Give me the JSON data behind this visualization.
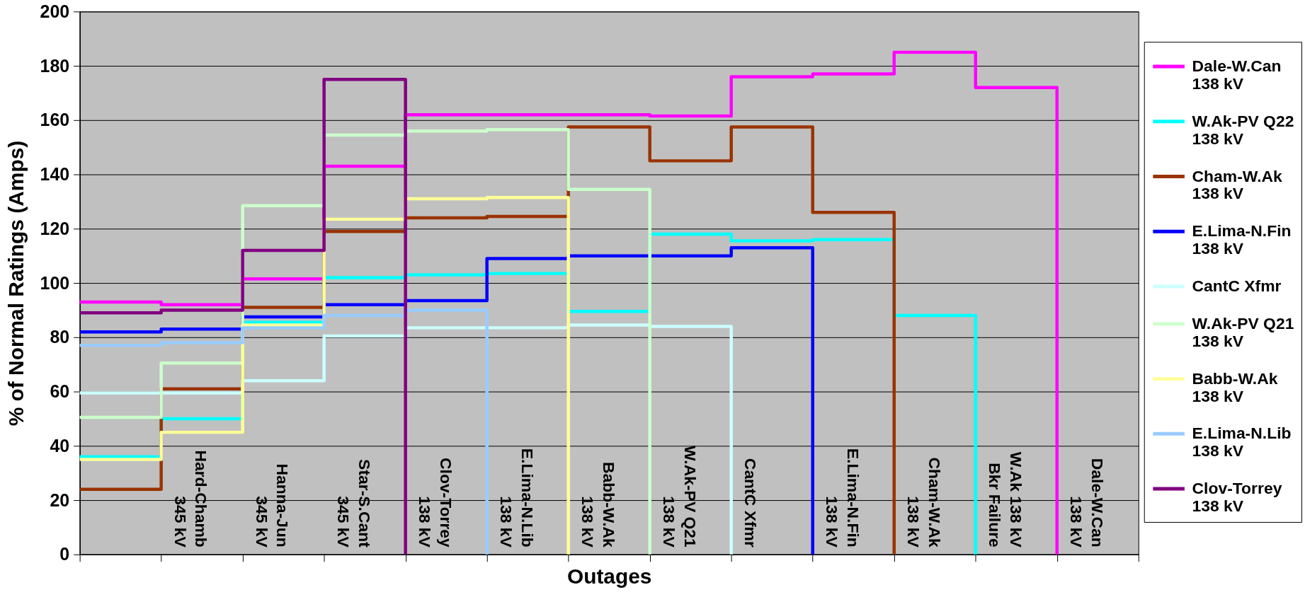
{
  "chart_data": {
    "type": "step",
    "xlabel": "Outages",
    "ylabel": "% of Normal Ratings (Amps)",
    "categories": [
      null,
      "Hard-Chamb 345 kV",
      "Hanna-Jun 345 kV",
      "Star-S.Cant 345 kV",
      "Clov-Torrey 138 kV",
      "E.Lima-N.Lib 138 kV",
      "Babb-W.Ak 138 kV",
      "W.Ak-PV Q21 138 kV",
      "CantC Xfmr",
      "E.Lima-N.Fin 138 kV",
      "Cham-W.Ak 138 kV",
      "W.Ak 138 kV Bkr Failure",
      "Dale-W.Can 138 kV"
    ],
    "series": [
      {
        "name": "Dale-W.Can 138 kV",
        "color": "#ff00ff",
        "values": [
          93,
          92,
          101.5,
          143,
          162,
          162,
          162,
          161.5,
          176,
          177,
          185,
          172,
          0
        ]
      },
      {
        "name": "W.Ak-PV Q22 138 kV",
        "color": "#00ffff",
        "values": [
          36,
          50,
          85.5,
          102,
          103,
          103.5,
          89.5,
          118,
          115.5,
          116,
          88,
          0,
          null
        ]
      },
      {
        "name": "Cham-W.Ak 138 kV",
        "color": "#993300",
        "values": [
          24,
          61,
          91,
          119,
          124,
          124.5,
          157.5,
          145,
          157.5,
          126,
          0,
          null,
          null
        ]
      },
      {
        "name": "E.Lima-N.Fin 138 kV",
        "color": "#0000ff",
        "values": [
          82,
          83,
          87.5,
          92,
          93.5,
          109,
          110,
          110,
          113,
          0,
          null,
          null,
          null
        ]
      },
      {
        "name": "CantC Xfmr",
        "color": "#ccffff",
        "values": [
          59.5,
          59.5,
          64,
          80.5,
          83.5,
          83.5,
          84.5,
          84,
          0,
          null,
          null,
          null,
          null
        ]
      },
      {
        "name": "W.Ak-PV Q21 138 kV",
        "color": "#ccffcc",
        "values": [
          50.5,
          70.5,
          128.5,
          154.5,
          156,
          156.5,
          134.5,
          0,
          null,
          null,
          null,
          null,
          null
        ]
      },
      {
        "name": "Babb-W.Ak 138 kV",
        "color": "#ffff99",
        "values": [
          35,
          45,
          84.5,
          123.5,
          131,
          131.5,
          0,
          null,
          null,
          null,
          null,
          null,
          null
        ]
      },
      {
        "name": "E.Lima-N.Lib 138 kV",
        "color": "#99ccff",
        "values": [
          77,
          78,
          83.5,
          88,
          90,
          0,
          null,
          null,
          null,
          null,
          null,
          null,
          null
        ]
      },
      {
        "name": "Clov-Torrey 138 kV",
        "color": "#800080",
        "values": [
          89,
          90,
          112,
          175,
          0,
          null,
          null,
          null,
          null,
          null,
          null,
          null,
          null
        ]
      }
    ],
    "ylim": [
      0,
      200
    ],
    "yticks": [
      0,
      20,
      40,
      60,
      80,
      100,
      120,
      140,
      160,
      180,
      200
    ],
    "grid": "y",
    "legend": "right",
    "line_style": "solid"
  }
}
